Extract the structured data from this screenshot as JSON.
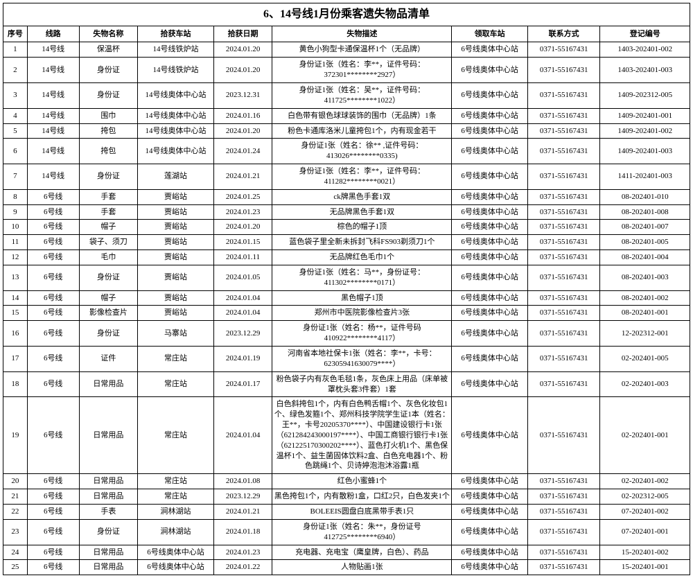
{
  "title": "6、14号线1月份乘客遗失物品清单",
  "columns": [
    "序号",
    "线路",
    "失物名称",
    "拾获车站",
    "拾获日期",
    "失物描述",
    "领取车站",
    "联系方式",
    "登记编号"
  ],
  "column_classes": [
    "col-seq",
    "col-line",
    "col-name",
    "col-found",
    "col-date",
    "col-desc",
    "col-rec",
    "col-tel",
    "col-reg"
  ],
  "rows": [
    [
      "1",
      "14号线",
      "保温杯",
      "14号线铁炉站",
      "2024.01.20",
      "黄色小狗型卡通保温杯1个（无品牌）",
      "6号线奥体中心站",
      "0371-55167431",
      "1403-202401-002"
    ],
    [
      "2",
      "14号线",
      "身份证",
      "14号线铁炉站",
      "2024.01.20",
      "身份证1张（姓名：李**，证件号码：372301********2927）",
      "6号线奥体中心站",
      "0371-55167431",
      "1403-202401-003"
    ],
    [
      "3",
      "14号线",
      "身份证",
      "14号线奥体中心站",
      "2023.12.31",
      "身份证1张（姓名：吴**，证件号码：411725********1022）",
      "6号线奥体中心站",
      "0371-55167431",
      "1409-202312-005"
    ],
    [
      "4",
      "14号线",
      "围巾",
      "14号线奥体中心站",
      "2024.01.16",
      "白色带有银色球球装饰的围巾（无品牌）1条",
      "6号线奥体中心站",
      "0371-55167431",
      "1409-202401-001"
    ],
    [
      "5",
      "14号线",
      "挎包",
      "14号线奥体中心站",
      "2024.01.20",
      "粉色卡通库洛米儿童挎包1个，内有现金若干",
      "6号线奥体中心站",
      "0371-55167431",
      "1409-202401-002"
    ],
    [
      "6",
      "14号线",
      "挎包",
      "14号线奥体中心站",
      "2024.01.24",
      "身份证1张（姓名：徐** ,证件号码：413026********0335)",
      "6号线奥体中心站",
      "0371-55167431",
      "1409-202401-003"
    ],
    [
      "7",
      "14号线",
      "身份证",
      "莲湖站",
      "2024.01.21",
      "身份证1张（姓名：李**，证件号码：411282********0021）",
      "6号线奥体中心站",
      "0371-55167431",
      "1411-202401-003"
    ],
    [
      "8",
      "6号线",
      "手套",
      "贾峪站",
      "2024.01.25",
      "ck牌黑色手套1双",
      "6号线奥体中心站",
      "0371-55167431",
      "08-202401-010"
    ],
    [
      "9",
      "6号线",
      "手套",
      "贾峪站",
      "2024.01.23",
      "无品牌黑色手套1双",
      "6号线奥体中心站",
      "0371-55167431",
      "08-202401-008"
    ],
    [
      "10",
      "6号线",
      "帽子",
      "贾峪站",
      "2024.01.20",
      "棕色的帽子1顶",
      "6号线奥体中心站",
      "0371-55167431",
      "08-202401-007"
    ],
    [
      "11",
      "6号线",
      "袋子、须刀",
      "贾峪站",
      "2024.01.15",
      "蓝色袋子里全新未拆封飞科FS903剃须刀1个",
      "6号线奥体中心站",
      "0371-55167431",
      "08-202401-005"
    ],
    [
      "12",
      "6号线",
      "毛巾",
      "贾峪站",
      "2024.01.11",
      "无品牌红色毛巾1个",
      "6号线奥体中心站",
      "0371-55167431",
      "08-202401-004"
    ],
    [
      "13",
      "6号线",
      "身份证",
      "贾峪站",
      "2024.01.05",
      "身份证1张（姓名：马**，身份证号：411302********0171）",
      "6号线奥体中心站",
      "0371-55167431",
      "08-202401-003"
    ],
    [
      "14",
      "6号线",
      "帽子",
      "贾峪站",
      "2024.01.04",
      "黑色帽子1顶",
      "6号线奥体中心站",
      "0371-55167431",
      "08-202401-002"
    ],
    [
      "15",
      "6号线",
      "影像检查片",
      "贾峪站",
      "2024.01.04",
      "郑州市中医院影像检查片3张",
      "6号线奥体中心站",
      "0371-55167431",
      "08-202401-001"
    ],
    [
      "16",
      "6号线",
      "身份证",
      "马寨站",
      "2023.12.29",
      "身份证1张（姓名：杨**，证件号码410922********4117）",
      "6号线奥体中心站",
      "0371-55167431",
      "12-202312-001"
    ],
    [
      "17",
      "6号线",
      "证件",
      "常庄站",
      "2024.01.19",
      "河南省本地社保卡1张（姓名：李**，卡号：62305941630079****）",
      "6号线奥体中心站",
      "0371-55167431",
      "02-202401-005"
    ],
    [
      "18",
      "6号线",
      "日常用品",
      "常庄站",
      "2024.01.17",
      "粉色袋子内有灰色毛毯1条，灰色床上用品（床单被罩枕头套3件套）1套",
      "6号线奥体中心站",
      "0371-55167431",
      "02-202401-003"
    ],
    [
      "19",
      "6号线",
      "日常用品",
      "常庄站",
      "2024.01.04",
      "白色斜挎包1个，内有白色鸭舌帽1个、灰色化妆包1个、绿色发箍1个、郑州科技学院学生证1本（姓名：王**，卡号20205370****）、中国建设银行卡1张（621284243000197****）、中国工商银行银行卡1张（621225170300202****）、蓝色打火机1个、黑色保温杯1个、益生菌固体饮料2盒、白色充电器1个、粉色跳绳1个、贝诗婷泡泡沐浴露1瓶",
      "6号线奥体中心站",
      "0371-55167431",
      "02-202401-001"
    ],
    [
      "20",
      "6号线",
      "日常用品",
      "常庄站",
      "2024.01.08",
      "红色小蜜蜂1个",
      "6号线奥体中心站",
      "0371-55167431",
      "02-202401-002"
    ],
    [
      "21",
      "6号线",
      "日常用品",
      "常庄站",
      "2023.12.29",
      "黑色挎包1个，内有散粉1盒，口红2只，白色发夹1个",
      "6号线奥体中心站",
      "0371-55167431",
      "02-202312-005"
    ],
    [
      "22",
      "6号线",
      "手表",
      "涧林湖站",
      "2024.01.21",
      "BOLEEIS圆盘白底黑带手表1只",
      "6号线奥体中心站",
      "0371-55167431",
      "07-202401-002"
    ],
    [
      "23",
      "6号线",
      "身份证",
      "涧林湖站",
      "2024.01.18",
      "身份证1张（姓名：朱**，身份证号412725********6940）",
      "6号线奥体中心站",
      "0371-55167431",
      "07-202401-001"
    ],
    [
      "24",
      "6号线",
      "日常用品",
      "6号线奥体中心站",
      "2024.01.23",
      "充电器、充电宝（鹰皇牌，白色）、药品",
      "6号线奥体中心站",
      "0371-55167431",
      "15-202401-002"
    ],
    [
      "25",
      "6号线",
      "日常用品",
      "6号线奥体中心站",
      "2024.01.22",
      "人物贴画1张",
      "6号线奥体中心站",
      "0371-55167431",
      "15-202401-001"
    ]
  ]
}
